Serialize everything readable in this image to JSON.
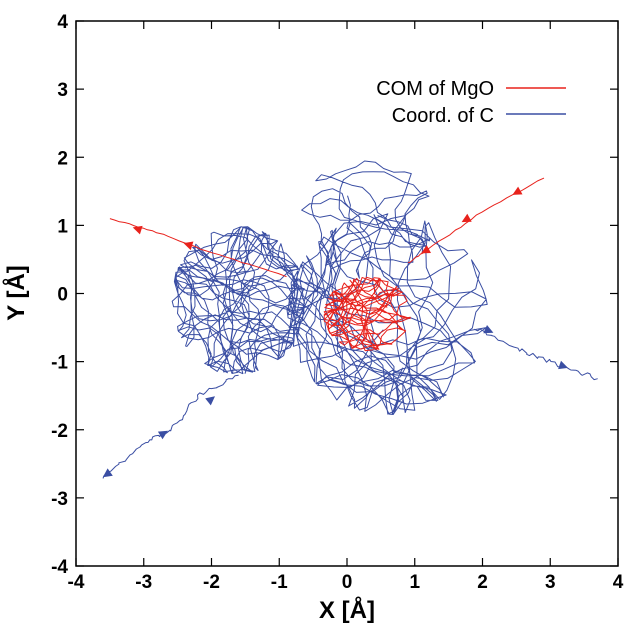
{
  "chart_data": {
    "type": "line",
    "xlabel": "X [Å]",
    "ylabel": "Y [Å]",
    "xlim": [
      -4,
      4
    ],
    "ylim": [
      -4,
      4
    ],
    "xticks": [
      "-4",
      "-3",
      "-2",
      "-1",
      "0",
      "1",
      "2",
      "3",
      "4"
    ],
    "yticks": [
      "-4",
      "-3",
      "-2",
      "-1",
      "0",
      "1",
      "2",
      "3",
      "4"
    ],
    "legend_position": "top-right",
    "grid": false,
    "series": [
      {
        "name": "COM of MgO",
        "color": "#e8221c",
        "entry_path": [
          [
            2.9,
            1.7
          ],
          [
            2.0,
            1.2
          ],
          [
            1.2,
            0.65
          ],
          [
            0.9,
            0.45
          ]
        ],
        "exit_path": [
          [
            -0.9,
            0.25
          ],
          [
            -2.0,
            0.6
          ],
          [
            -2.8,
            0.9
          ],
          [
            -3.5,
            1.1
          ]
        ],
        "arrows": [
          {
            "at": [
              2.5,
              1.48
            ],
            "dir": [
              -1,
              -0.55
            ]
          },
          {
            "at": [
              1.75,
              1.08
            ],
            "dir": [
              -1,
              -0.55
            ]
          },
          {
            "at": [
              1.15,
              0.62
            ],
            "dir": [
              -1,
              -0.55
            ]
          },
          {
            "at": [
              -2.35,
              0.72
            ],
            "dir": [
              -1,
              0.32
            ]
          },
          {
            "at": [
              -3.1,
              0.95
            ],
            "dir": [
              -1,
              0.32
            ]
          }
        ],
        "cluster": {
          "center": [
            0.3,
            -0.3
          ],
          "rx": 0.65,
          "ry": 0.55,
          "points": 320
        }
      },
      {
        "name": "Coord. of C",
        "color": "#3a4ea3",
        "entry_path": [
          [
            -3.6,
            -2.7
          ],
          [
            -3.0,
            -2.2
          ],
          [
            -2.6,
            -2.0
          ],
          [
            -2.2,
            -1.5
          ],
          [
            -1.6,
            -1.2
          ]
        ],
        "exit_path": [
          [
            1.9,
            -0.5
          ],
          [
            2.5,
            -0.8
          ],
          [
            3.1,
            -1.05
          ],
          [
            3.7,
            -1.25
          ]
        ],
        "arrows": [
          {
            "at": [
              -3.55,
              -2.66
            ],
            "dir": [
              -1,
              -0.7
            ]
          },
          {
            "at": [
              -2.7,
              -2.05
            ],
            "dir": [
              1,
              0.6
            ]
          },
          {
            "at": [
              -2.0,
              -1.55
            ],
            "dir": [
              1,
              0.8
            ]
          },
          {
            "at": [
              2.1,
              -0.55
            ],
            "dir": [
              1,
              -0.45
            ]
          },
          {
            "at": [
              3.2,
              -1.07
            ],
            "dir": [
              1,
              -0.35
            ]
          }
        ],
        "clusters": [
          {
            "center": [
              -1.6,
              -0.1
            ],
            "rx": 1.0,
            "ry": 1.1,
            "points": 620
          },
          {
            "center": [
              0.6,
              -0.3
            ],
            "rx": 1.5,
            "ry": 1.5,
            "points": 520
          },
          {
            "center": [
              0.3,
              1.1
            ],
            "rx": 1.0,
            "ry": 0.9,
            "points": 160
          }
        ]
      }
    ]
  }
}
